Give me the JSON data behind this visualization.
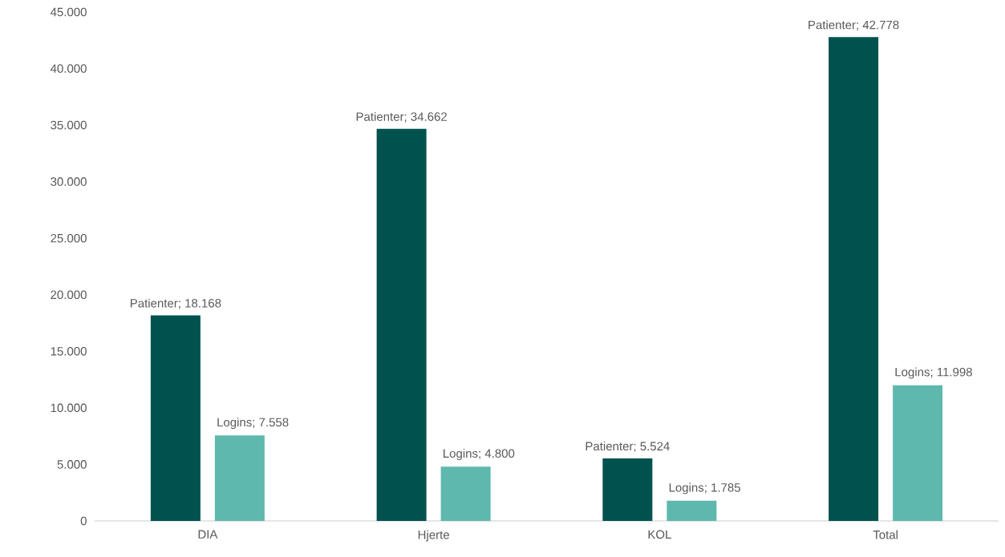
{
  "chart_data": {
    "type": "bar",
    "categories": [
      "DIA",
      "Hjerte",
      "KOL",
      "Total"
    ],
    "series": [
      {
        "color": "#00524f",
        "values": [
          18168,
          34662,
          5524,
          42778
        ],
        "value_labels": [
          "Patienter; 18.168",
          "Patienter; 34.662",
          "Patienter; 5.524",
          "Patienter; 42.778"
        ]
      },
      {
        "color": "#5fb8ae",
        "values": [
          7558,
          4800,
          1785,
          11998
        ],
        "value_labels": [
          "Logins; 7.558",
          "Logins; 4.800",
          "Logins; 1.785",
          "Logins; 11.998"
        ]
      }
    ],
    "ylim": [
      0,
      45000
    ],
    "yticks": [
      0,
      {
        "value": 5000,
        "label": "5.000"
      },
      {
        "value": 10000,
        "label": "10.000"
      },
      {
        "value": 15000,
        "label": "15.000"
      },
      {
        "value": 20000,
        "label": "20.000"
      },
      {
        "value": 25000,
        "label": "25.000"
      },
      {
        "value": 30000,
        "label": "30.000"
      },
      {
        "value": 35000,
        "label": "35.000"
      },
      {
        "value": 40000,
        "label": "40.000"
      },
      {
        "value": 45000,
        "label": "45.000"
      }
    ]
  }
}
